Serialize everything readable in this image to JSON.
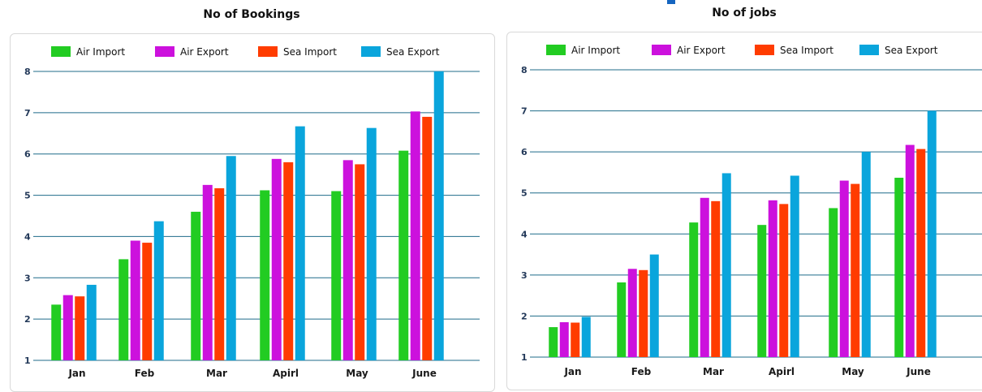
{
  "charts": {
    "left": {
      "title": "No of Bookings"
    },
    "right": {
      "title": "No of jobs"
    }
  },
  "colors": {
    "grid": "#1f6b8a",
    "panel_border": "#d9d9d9"
  },
  "chart_data": [
    {
      "type": "bar",
      "title": "No of Bookings",
      "xlabel": "",
      "ylabel": "",
      "ylim": [
        1,
        8
      ],
      "yticks": [
        1,
        2,
        3,
        4,
        5,
        6,
        7,
        8
      ],
      "grid": true,
      "legend_position": "top",
      "categories": [
        "Jan",
        "Feb",
        "Mar",
        "Apirl",
        "May",
        "June"
      ],
      "series": [
        {
          "name": "Air Import",
          "color": "#22cc22",
          "values": [
            2.35,
            3.45,
            4.6,
            5.12,
            5.1,
            6.08
          ]
        },
        {
          "name": "Air Export",
          "color": "#cc11dd",
          "values": [
            2.58,
            3.9,
            5.25,
            5.88,
            5.85,
            7.03
          ]
        },
        {
          "name": "Sea Import",
          "color": "#ff3c00",
          "values": [
            2.55,
            3.85,
            5.17,
            5.8,
            5.75,
            6.9
          ]
        },
        {
          "name": "Sea Export",
          "color": "#0aa5dc",
          "values": [
            2.83,
            4.37,
            5.95,
            6.67,
            6.63,
            8.0
          ]
        }
      ]
    },
    {
      "type": "bar",
      "title": "No of jobs",
      "xlabel": "",
      "ylabel": "",
      "ylim": [
        1,
        8
      ],
      "yticks": [
        1,
        2,
        3,
        4,
        5,
        6,
        7,
        8
      ],
      "grid": true,
      "legend_position": "top",
      "categories": [
        "Jan",
        "Feb",
        "Mar",
        "Apirl",
        "May",
        "June"
      ],
      "series": [
        {
          "name": "Air Import",
          "color": "#22cc22",
          "values": [
            1.73,
            2.82,
            4.28,
            4.22,
            4.63,
            5.37
          ]
        },
        {
          "name": "Air Export",
          "color": "#cc11dd",
          "values": [
            1.85,
            3.15,
            4.88,
            4.82,
            5.3,
            6.17
          ]
        },
        {
          "name": "Sea Import",
          "color": "#ff3c00",
          "values": [
            1.84,
            3.12,
            4.8,
            4.73,
            5.22,
            6.07
          ]
        },
        {
          "name": "Sea Export",
          "color": "#0aa5dc",
          "values": [
            1.98,
            3.5,
            5.48,
            5.42,
            6.0,
            7.0
          ]
        }
      ]
    }
  ]
}
